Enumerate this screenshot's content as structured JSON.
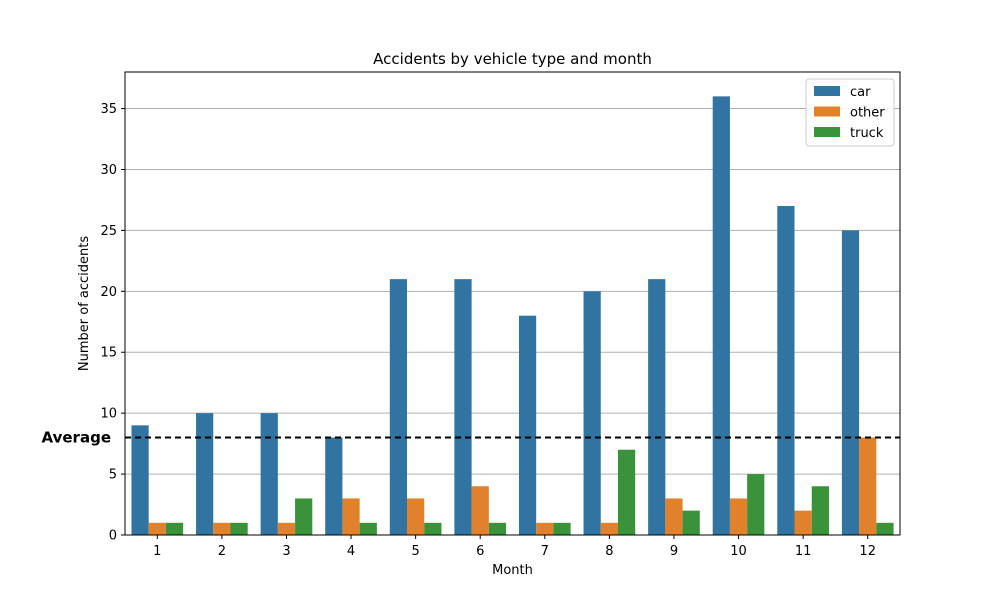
{
  "chart_data": {
    "type": "bar",
    "title": "Accidents by vehicle type and month",
    "xlabel": "Month",
    "ylabel": "Number of accidents",
    "categories": [
      "1",
      "2",
      "3",
      "4",
      "5",
      "6",
      "7",
      "8",
      "9",
      "10",
      "11",
      "12"
    ],
    "series": [
      {
        "name": "car",
        "color": "#3274a1",
        "values": [
          9,
          10,
          10,
          8,
          21,
          21,
          18,
          20,
          21,
          36,
          27,
          25
        ]
      },
      {
        "name": "other",
        "color": "#e1812c",
        "values": [
          1,
          1,
          1,
          3,
          3,
          4,
          1,
          1,
          3,
          3,
          2,
          8
        ]
      },
      {
        "name": "truck",
        "color": "#3a923a",
        "values": [
          1,
          1,
          3,
          1,
          1,
          1,
          1,
          7,
          2,
          5,
          4,
          1
        ]
      }
    ],
    "ylim": [
      0,
      38
    ],
    "yticks": [
      0,
      5,
      10,
      15,
      20,
      25,
      30,
      35
    ],
    "grid": "y-major",
    "legend_position": "top-right",
    "reference_line": {
      "label": "Average",
      "value": 8,
      "style": "dashed",
      "color": "#000000"
    }
  }
}
